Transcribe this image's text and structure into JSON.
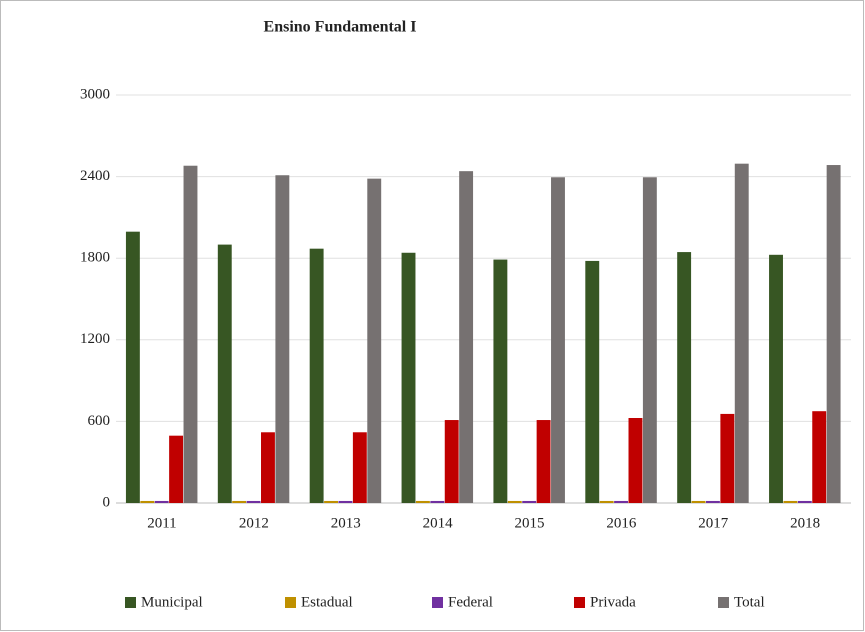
{
  "chart_data": {
    "type": "bar",
    "title": "Ensino Fundamental I",
    "categories": [
      "2011",
      "2012",
      "2013",
      "2014",
      "2015",
      "2016",
      "2017",
      "2018"
    ],
    "series": [
      {
        "name": "Municipal",
        "color": "#375623",
        "values": [
          1995,
          1900,
          1870,
          1840,
          1790,
          1780,
          1845,
          1825
        ]
      },
      {
        "name": "Estadual",
        "color": "#bf9000",
        "values": [
          15,
          15,
          15,
          15,
          15,
          15,
          15,
          15
        ]
      },
      {
        "name": "Federal",
        "color": "#7030a0",
        "values": [
          15,
          15,
          15,
          15,
          15,
          15,
          15,
          15
        ]
      },
      {
        "name": "Privada",
        "color": "#c00000",
        "values": [
          495,
          520,
          520,
          610,
          610,
          625,
          655,
          675
        ]
      },
      {
        "name": "Total",
        "color": "#767171",
        "values": [
          2480,
          2410,
          2385,
          2440,
          2395,
          2395,
          2495,
          2485
        ]
      }
    ],
    "ylim": [
      0,
      3000
    ],
    "yticks": [
      0,
      600,
      1200,
      1800,
      2400,
      3000
    ],
    "grid": true,
    "legend": "bottom"
  }
}
